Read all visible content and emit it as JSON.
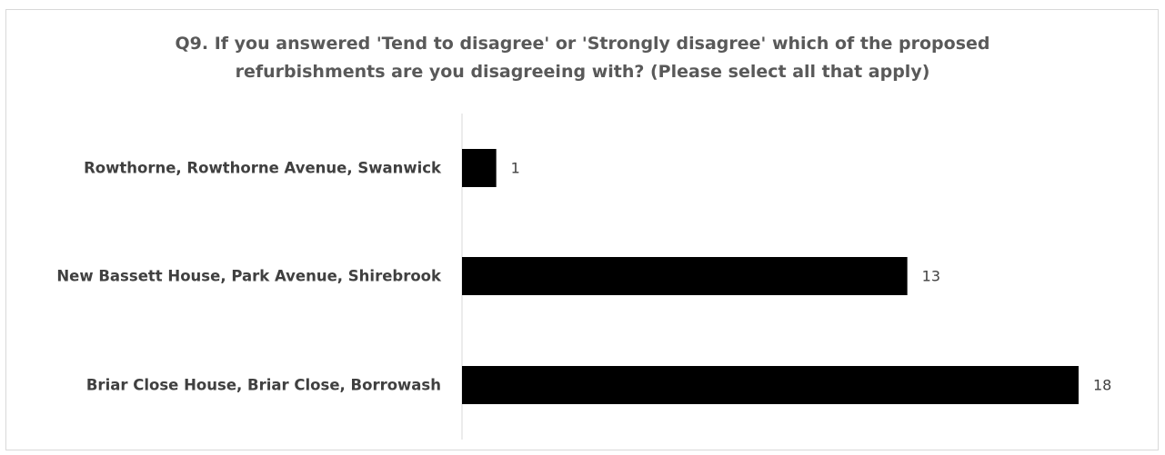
{
  "chart_data": {
    "type": "bar",
    "orientation": "horizontal",
    "title_lines": [
      "Q9. If you answered 'Tend to disagree' or 'Strongly disagree' which of the proposed",
      "refurbishments are you disagreeing with? (Please select all that apply)"
    ],
    "categories": [
      "Rowthorne, Rowthorne Avenue, Swanwick",
      "New Bassett House, Park Avenue, Shirebrook",
      "Briar Close House, Briar Close, Borrowash"
    ],
    "values": [
      1,
      13,
      18
    ],
    "data_labels": [
      "1",
      "13",
      "18"
    ],
    "xlim": [
      0,
      18
    ],
    "grid": false,
    "legend": "none",
    "colors": {
      "bar": "#000000",
      "title": "#595959",
      "category_label": "#404040",
      "value_label": "#404040",
      "axis": "#d9d9d9"
    }
  }
}
